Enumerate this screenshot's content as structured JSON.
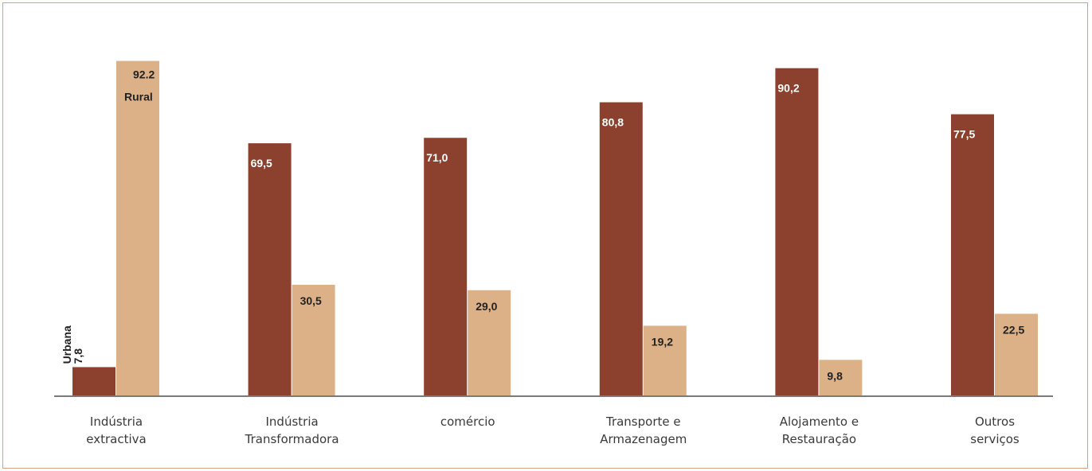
{
  "chart_data": {
    "type": "bar",
    "categories": [
      [
        "Indústria",
        "extractiva"
      ],
      [
        "Indústria",
        "Transformadora"
      ],
      [
        "comércio"
      ],
      [
        "Transporte e",
        "Armazenagem"
      ],
      [
        "Alojamento e",
        "Restauração"
      ],
      [
        "Outros",
        "serviços"
      ]
    ],
    "series": [
      {
        "name": "Urbana",
        "values": [
          7.8,
          69.5,
          71.0,
          80.8,
          90.2,
          77.5
        ],
        "labels": [
          "7,8",
          "69,5",
          "71,0",
          "80,8",
          "90,2",
          "77,5"
        ],
        "color": "#8b412d"
      },
      {
        "name": "Rural",
        "values": [
          92.2,
          30.5,
          29.0,
          19.2,
          9.8,
          22.5
        ],
        "labels": [
          "92.2",
          "30,5",
          "29,0",
          "19,2",
          "9,8",
          "22,5"
        ],
        "color": "#dcb187"
      }
    ],
    "ylim": [
      0,
      100
    ],
    "grid": false,
    "legend": "inline labels on first category",
    "title": "",
    "xlabel": "",
    "ylabel": ""
  }
}
